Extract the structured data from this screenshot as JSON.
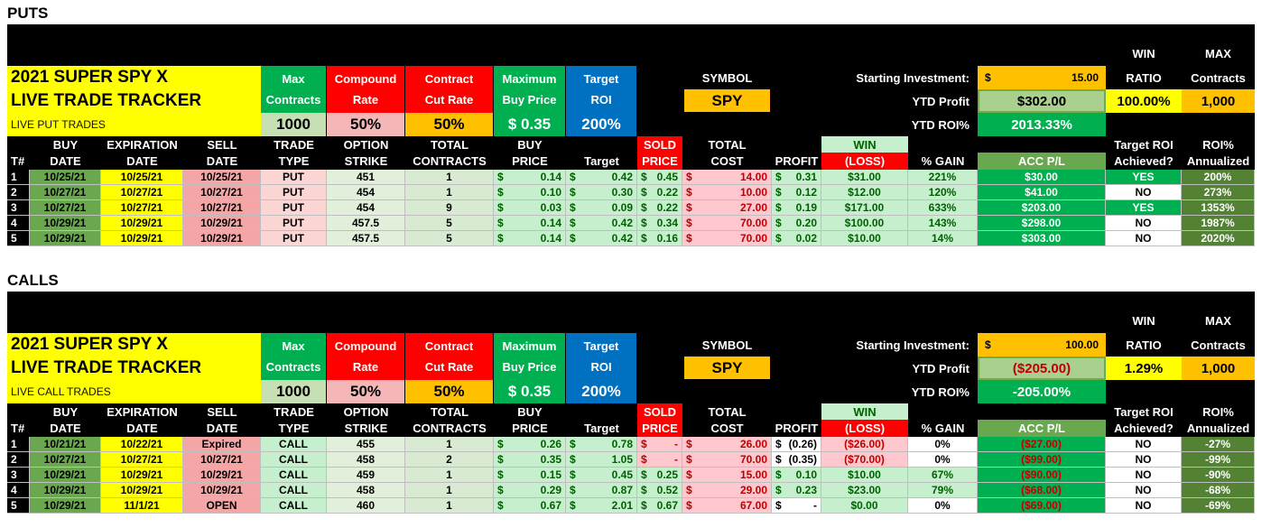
{
  "sections": [
    {
      "title": "PUTS",
      "tracker_title": [
        "2021 SUPER SPY X",
        "LIVE TRADE TRACKER"
      ],
      "subtitle": "LIVE PUT TRADES",
      "settings": [
        {
          "label": [
            "Max",
            "Contracts"
          ],
          "value": "1000"
        },
        {
          "label": [
            "Compound",
            "Rate"
          ],
          "value": "50%"
        },
        {
          "label": [
            "Contract",
            "Cut Rate"
          ],
          "value": "50%"
        },
        {
          "label": [
            "Maximum",
            "Buy Price"
          ],
          "value": "$ 0.35"
        },
        {
          "label": [
            "Target",
            "ROI"
          ],
          "value": "200%"
        }
      ],
      "symbol_label": "SYMBOL",
      "symbol": "SPY",
      "starting_investment": {
        "label": "Starting Investment:",
        "value": [
          "$",
          "15.00"
        ]
      },
      "ytd_profit": {
        "label": "YTD Profit",
        "value": "$302.00"
      },
      "ytd_roi": {
        "label": "YTD ROI%",
        "value": "2013.33%"
      },
      "win_ratio": {
        "label": [
          "WIN",
          "RATIO"
        ],
        "value": "100.00%"
      },
      "max_contracts": {
        "label": [
          "MAX",
          "Contracts"
        ],
        "value": "1,000"
      },
      "columns": [
        [
          "T#"
        ],
        [
          "BUY",
          "DATE"
        ],
        [
          "EXPIRATION",
          "DATE"
        ],
        [
          "SELL",
          "DATE"
        ],
        [
          "TRADE",
          "TYPE"
        ],
        [
          "OPTION",
          "STRIKE"
        ],
        [
          "TOTAL",
          "CONTRACTS"
        ],
        [
          "BUY",
          "PRICE"
        ],
        [
          "Target"
        ],
        [
          "SOLD",
          "PRICE"
        ],
        [
          "TOTAL",
          "COST"
        ],
        [
          "PROFIT"
        ],
        [
          "WIN",
          "(LOSS)"
        ],
        [
          "% GAIN"
        ],
        [
          "ACC P/L"
        ],
        [
          "Target ROI",
          "Achieved?"
        ],
        [
          "ROI%",
          "Annualized"
        ]
      ],
      "rows": [
        [
          "1",
          "10/25/21",
          "10/25/21",
          "10/25/21",
          "PUT",
          "451",
          "1",
          [
            "$",
            "0.14"
          ],
          [
            "$",
            "0.42"
          ],
          [
            "$",
            "0.45"
          ],
          [
            "$",
            "14.00"
          ],
          [
            "$",
            "0.31"
          ],
          "$31.00",
          "221%",
          "$30.00",
          "YES",
          "200%"
        ],
        [
          "2",
          "10/27/21",
          "10/27/21",
          "10/27/21",
          "PUT",
          "454",
          "1",
          [
            "$",
            "0.10"
          ],
          [
            "$",
            "0.30"
          ],
          [
            "$",
            "0.22"
          ],
          [
            "$",
            "10.00"
          ],
          [
            "$",
            "0.12"
          ],
          "$12.00",
          "120%",
          "$41.00",
          "NO",
          "273%"
        ],
        [
          "3",
          "10/27/21",
          "10/27/21",
          "10/27/21",
          "PUT",
          "454",
          "9",
          [
            "$",
            "0.03"
          ],
          [
            "$",
            "0.09"
          ],
          [
            "$",
            "0.22"
          ],
          [
            "$",
            "27.00"
          ],
          [
            "$",
            "0.19"
          ],
          "$171.00",
          "633%",
          "$203.00",
          "YES",
          "1353%"
        ],
        [
          "4",
          "10/29/21",
          "10/29/21",
          "10/29/21",
          "PUT",
          "457.5",
          "5",
          [
            "$",
            "0.14"
          ],
          [
            "$",
            "0.42"
          ],
          [
            "$",
            "0.34"
          ],
          [
            "$",
            "70.00"
          ],
          [
            "$",
            "0.20"
          ],
          "$100.00",
          "143%",
          "$298.00",
          "NO",
          "1987%"
        ],
        [
          "5",
          "10/29/21",
          "10/29/21",
          "10/29/21",
          "PUT",
          "457.5",
          "5",
          [
            "$",
            "0.14"
          ],
          [
            "$",
            "0.42"
          ],
          [
            "$",
            "0.16"
          ],
          [
            "$",
            "70.00"
          ],
          [
            "$",
            "0.02"
          ],
          "$10.00",
          "14%",
          "$303.00",
          "NO",
          "2020%"
        ]
      ]
    },
    {
      "title": "CALLS",
      "tracker_title": [
        "2021 SUPER SPY X",
        "LIVE TRADE TRACKER"
      ],
      "subtitle": "LIVE CALL TRADES",
      "settings": [
        {
          "label": [
            "Max",
            "Contracts"
          ],
          "value": "1000"
        },
        {
          "label": [
            "Compound",
            "Rate"
          ],
          "value": "50%"
        },
        {
          "label": [
            "Contract",
            "Cut Rate"
          ],
          "value": "50%"
        },
        {
          "label": [
            "Maximum",
            "Buy Price"
          ],
          "value": "$ 0.35"
        },
        {
          "label": [
            "Target",
            "ROI"
          ],
          "value": "200%"
        }
      ],
      "symbol_label": "SYMBOL",
      "symbol": "SPY",
      "starting_investment": {
        "label": "Starting Investment:",
        "value": [
          "$",
          "100.00"
        ]
      },
      "ytd_profit": {
        "label": "YTD Profit",
        "value": "($205.00)"
      },
      "ytd_roi": {
        "label": "YTD ROI%",
        "value": "-205.00%"
      },
      "win_ratio": {
        "label": [
          "WIN",
          "RATIO"
        ],
        "value": "1.29%"
      },
      "max_contracts": {
        "label": [
          "MAX",
          "Contracts"
        ],
        "value": "1,000"
      },
      "columns": [
        [
          "T#"
        ],
        [
          "BUY",
          "DATE"
        ],
        [
          "EXPIRATION",
          "DATE"
        ],
        [
          "SELL",
          "DATE"
        ],
        [
          "TRADE",
          "TYPE"
        ],
        [
          "OPTION",
          "STRIKE"
        ],
        [
          "TOTAL",
          "CONTRACTS"
        ],
        [
          "BUY",
          "PRICE"
        ],
        [
          "Target"
        ],
        [
          "SOLD",
          "PRICE"
        ],
        [
          "TOTAL",
          "COST"
        ],
        [
          "PROFIT"
        ],
        [
          "WIN",
          "(LOSS)"
        ],
        [
          "% GAIN"
        ],
        [
          "ACC P/L"
        ],
        [
          "Target ROI",
          "Achieved?"
        ],
        [
          "ROI%",
          "Annualized"
        ]
      ],
      "rows": [
        [
          "1",
          "10/21/21",
          "10/22/21",
          "Expired",
          "CALL",
          "455",
          "1",
          [
            "$",
            "0.26"
          ],
          [
            "$",
            "0.78"
          ],
          [
            "$",
            "-"
          ],
          [
            "$",
            "26.00"
          ],
          [
            "$",
            "(0.26)"
          ],
          "($26.00)",
          "0%",
          "($27.00)",
          "NO",
          "-27%"
        ],
        [
          "2",
          "10/27/21",
          "10/27/21",
          "10/27/21",
          "CALL",
          "458",
          "2",
          [
            "$",
            "0.35"
          ],
          [
            "$",
            "1.05"
          ],
          [
            "$",
            "-"
          ],
          [
            "$",
            "70.00"
          ],
          [
            "$",
            "(0.35)"
          ],
          "($70.00)",
          "0%",
          "($99.00)",
          "NO",
          "-99%"
        ],
        [
          "3",
          "10/29/21",
          "10/29/21",
          "10/29/21",
          "CALL",
          "459",
          "1",
          [
            "$",
            "0.15"
          ],
          [
            "$",
            "0.45"
          ],
          [
            "$",
            "0.25"
          ],
          [
            "$",
            "15.00"
          ],
          [
            "$",
            "0.10"
          ],
          "$10.00",
          "67%",
          "($90.00)",
          "NO",
          "-90%"
        ],
        [
          "4",
          "10/29/21",
          "10/29/21",
          "10/29/21",
          "CALL",
          "458",
          "1",
          [
            "$",
            "0.29"
          ],
          [
            "$",
            "0.87"
          ],
          [
            "$",
            "0.52"
          ],
          [
            "$",
            "29.00"
          ],
          [
            "$",
            "0.23"
          ],
          "$23.00",
          "79%",
          "($68.00)",
          "NO",
          "-68%"
        ],
        [
          "5",
          "10/29/21",
          "11/1/21",
          "OPEN",
          "CALL",
          "460",
          "1",
          [
            "$",
            "0.67"
          ],
          [
            "$",
            "2.01"
          ],
          [
            "$",
            "0.67"
          ],
          [
            "$",
            "67.00"
          ],
          [
            "$",
            "-"
          ],
          "$0.00",
          "0%",
          "($69.00)",
          "NO",
          "-69%"
        ]
      ]
    }
  ]
}
